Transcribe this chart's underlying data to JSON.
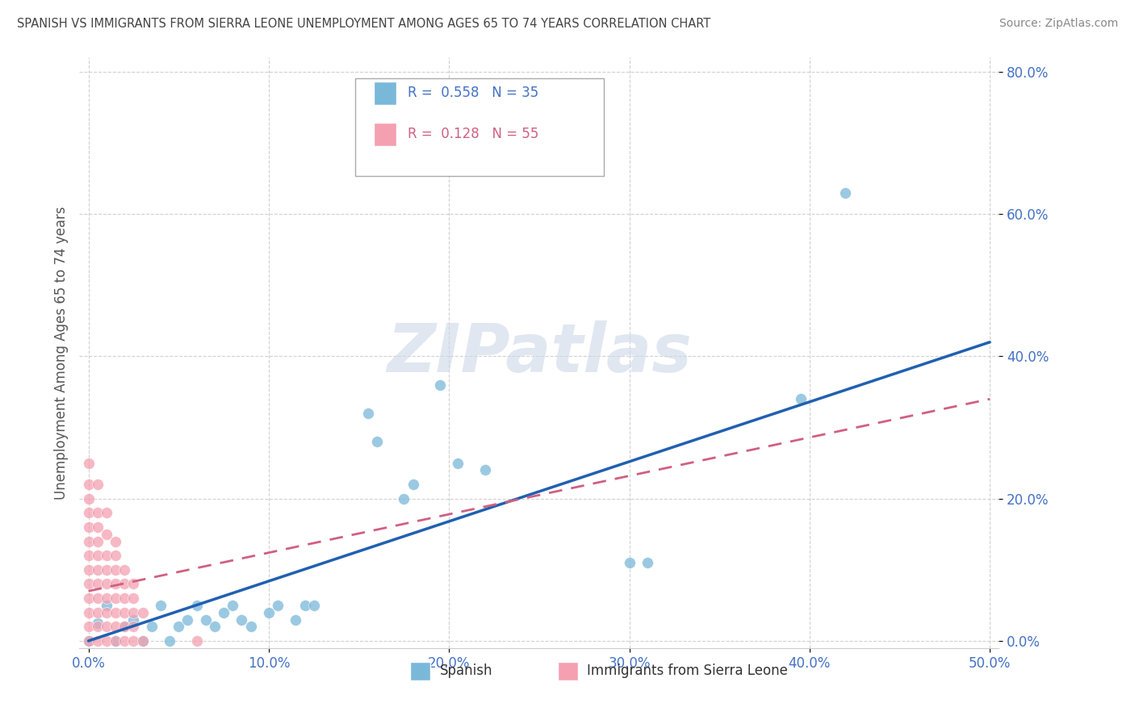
{
  "title": "SPANISH VS IMMIGRANTS FROM SIERRA LEONE UNEMPLOYMENT AMONG AGES 65 TO 74 YEARS CORRELATION CHART",
  "source": "Source: ZipAtlas.com",
  "xlabel_ticks": [
    "0.0%",
    "10.0%",
    "20.0%",
    "30.0%",
    "40.0%",
    "50.0%"
  ],
  "ylabel_ticks": [
    "0.0%",
    "20.0%",
    "40.0%",
    "60.0%",
    "80.0%"
  ],
  "xlim": [
    -0.005,
    0.505
  ],
  "ylim": [
    -0.01,
    0.82
  ],
  "ylabel": "Unemployment Among Ages 65 to 74 years",
  "legend_bottom": [
    "Spanish",
    "Immigrants from Sierra Leone"
  ],
  "R_spanish": 0.558,
  "N_spanish": 35,
  "R_immigrants": 0.128,
  "N_immigrants": 55,
  "spanish_color": "#7ab8d9",
  "immigrants_color": "#f4a0b0",
  "trendline_spanish_color": "#2060b0",
  "trendline_immigrants_color": "#d06080",
  "watermark_color": "#ccd8e8",
  "watermark": "ZIPatlas",
  "spanish_points": [
    [
      0.0,
      0.0
    ],
    [
      0.005,
      0.025
    ],
    [
      0.01,
      0.05
    ],
    [
      0.015,
      0.0
    ],
    [
      0.02,
      0.02
    ],
    [
      0.025,
      0.03
    ],
    [
      0.03,
      0.0
    ],
    [
      0.035,
      0.02
    ],
    [
      0.04,
      0.05
    ],
    [
      0.045,
      0.0
    ],
    [
      0.05,
      0.02
    ],
    [
      0.055,
      0.03
    ],
    [
      0.06,
      0.05
    ],
    [
      0.065,
      0.03
    ],
    [
      0.07,
      0.02
    ],
    [
      0.075,
      0.04
    ],
    [
      0.08,
      0.05
    ],
    [
      0.085,
      0.03
    ],
    [
      0.09,
      0.02
    ],
    [
      0.1,
      0.04
    ],
    [
      0.105,
      0.05
    ],
    [
      0.115,
      0.03
    ],
    [
      0.12,
      0.05
    ],
    [
      0.125,
      0.05
    ],
    [
      0.155,
      0.32
    ],
    [
      0.16,
      0.28
    ],
    [
      0.175,
      0.2
    ],
    [
      0.18,
      0.22
    ],
    [
      0.195,
      0.36
    ],
    [
      0.205,
      0.25
    ],
    [
      0.22,
      0.24
    ],
    [
      0.3,
      0.11
    ],
    [
      0.31,
      0.11
    ],
    [
      0.395,
      0.34
    ],
    [
      0.42,
      0.63
    ]
  ],
  "immigrants_points": [
    [
      0.0,
      0.25
    ],
    [
      0.0,
      0.22
    ],
    [
      0.0,
      0.2
    ],
    [
      0.0,
      0.18
    ],
    [
      0.0,
      0.16
    ],
    [
      0.0,
      0.14
    ],
    [
      0.0,
      0.12
    ],
    [
      0.0,
      0.1
    ],
    [
      0.0,
      0.08
    ],
    [
      0.0,
      0.06
    ],
    [
      0.0,
      0.04
    ],
    [
      0.0,
      0.02
    ],
    [
      0.0,
      0.0
    ],
    [
      0.005,
      0.22
    ],
    [
      0.005,
      0.18
    ],
    [
      0.005,
      0.16
    ],
    [
      0.005,
      0.14
    ],
    [
      0.005,
      0.12
    ],
    [
      0.005,
      0.1
    ],
    [
      0.005,
      0.08
    ],
    [
      0.005,
      0.06
    ],
    [
      0.005,
      0.04
    ],
    [
      0.005,
      0.02
    ],
    [
      0.005,
      0.0
    ],
    [
      0.01,
      0.18
    ],
    [
      0.01,
      0.15
    ],
    [
      0.01,
      0.12
    ],
    [
      0.01,
      0.1
    ],
    [
      0.01,
      0.08
    ],
    [
      0.01,
      0.06
    ],
    [
      0.01,
      0.04
    ],
    [
      0.01,
      0.02
    ],
    [
      0.01,
      0.0
    ],
    [
      0.015,
      0.14
    ],
    [
      0.015,
      0.12
    ],
    [
      0.015,
      0.1
    ],
    [
      0.015,
      0.08
    ],
    [
      0.015,
      0.06
    ],
    [
      0.015,
      0.04
    ],
    [
      0.015,
      0.02
    ],
    [
      0.015,
      0.0
    ],
    [
      0.02,
      0.1
    ],
    [
      0.02,
      0.08
    ],
    [
      0.02,
      0.06
    ],
    [
      0.02,
      0.04
    ],
    [
      0.02,
      0.02
    ],
    [
      0.02,
      0.0
    ],
    [
      0.025,
      0.08
    ],
    [
      0.025,
      0.06
    ],
    [
      0.025,
      0.04
    ],
    [
      0.025,
      0.02
    ],
    [
      0.025,
      0.0
    ],
    [
      0.03,
      0.04
    ],
    [
      0.03,
      0.0
    ],
    [
      0.06,
      0.0
    ]
  ]
}
